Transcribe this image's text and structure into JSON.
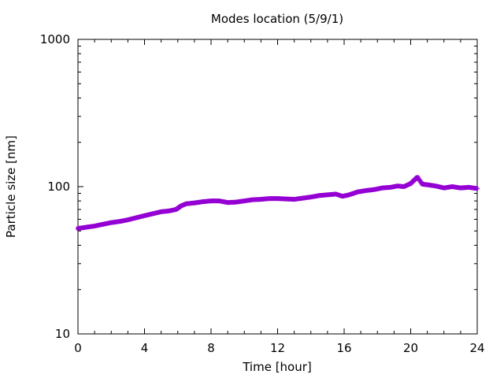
{
  "chart_data": {
    "type": "scatter",
    "title": "Modes location (5/9/1)",
    "xlabel": "Time [hour]",
    "ylabel": "Particle size [nm]",
    "xlim": [
      0,
      24
    ],
    "ylim": [
      10,
      1000
    ],
    "y_scale": "log",
    "x_ticks": [
      0,
      4,
      8,
      12,
      16,
      20,
      24
    ],
    "x_tick_labels": [
      "0",
      "4",
      "8",
      "12",
      "16",
      "20",
      "24"
    ],
    "y_ticks": [
      10,
      100,
      1000
    ],
    "y_tick_labels": [
      "10",
      "100",
      "1000"
    ],
    "grid": false,
    "legend": "none",
    "color": "#9400d3",
    "series": [
      {
        "x": [
          0,
          0.5,
          1,
          1.5,
          2,
          2.5,
          3,
          3.5,
          4,
          4.5,
          5,
          5.5,
          5.9,
          6.2,
          6.5,
          7,
          7.5,
          8,
          8.5,
          9,
          9.5,
          10,
          10.5,
          11,
          11.5,
          12,
          12.5,
          13,
          13.5,
          14,
          14.5,
          15,
          15.5,
          15.9,
          16.3,
          16.8,
          17.3,
          17.8,
          18.3,
          18.8,
          19.2,
          19.6,
          20,
          20.4,
          20.7,
          21,
          21.5,
          22,
          22.5,
          23,
          23.5,
          24
        ],
        "y": [
          52,
          53,
          54,
          55.5,
          57,
          58,
          59.5,
          61.5,
          63.5,
          65.5,
          67.5,
          68.5,
          70,
          74,
          76.5,
          77.5,
          79,
          80,
          80,
          78,
          78.5,
          80,
          81.5,
          82,
          83,
          83,
          82.5,
          82,
          83.5,
          85,
          87,
          88,
          89,
          86,
          88,
          92,
          94,
          95.5,
          98,
          99,
          101,
          100,
          105,
          116,
          104,
          103,
          101,
          98,
          100,
          98,
          99,
          97
        ]
      }
    ]
  }
}
